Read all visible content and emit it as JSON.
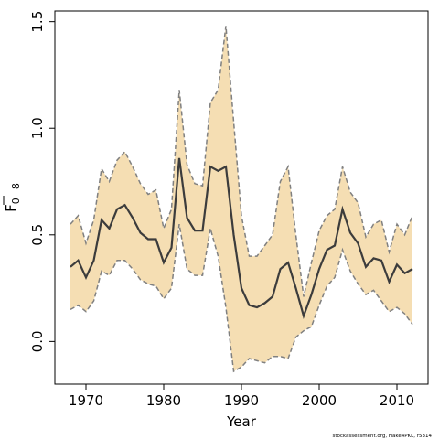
{
  "chart_data": {
    "type": "area",
    "xlabel": "Year",
    "ylabel_main": "F",
    "ylabel_sub": "0−8",
    "xlim": [
      1966,
      2014
    ],
    "ylim": [
      -0.2,
      1.55
    ],
    "x_ticks": [
      1970,
      1980,
      1990,
      2000,
      2010
    ],
    "y_ticks": [
      0.0,
      0.5,
      1.0,
      1.5
    ],
    "y_tick_labels": [
      "0.0",
      "0.5",
      "1.0",
      "1.5"
    ],
    "grid": false,
    "band_color": "#f5deb3",
    "line_color": "#3c3c3c",
    "bound_color": "#808080",
    "x": [
      1968,
      1969,
      1970,
      1971,
      1972,
      1973,
      1974,
      1975,
      1976,
      1977,
      1978,
      1979,
      1980,
      1981,
      1982,
      1983,
      1984,
      1985,
      1986,
      1987,
      1988,
      1989,
      1990,
      1991,
      1992,
      1993,
      1994,
      1995,
      1996,
      1997,
      1998,
      1999,
      2000,
      2001,
      2002,
      2003,
      2004,
      2005,
      2006,
      2007,
      2008,
      2009,
      2010,
      2011,
      2012
    ],
    "series": [
      {
        "role": "estimate",
        "values": [
          0.35,
          0.38,
          0.3,
          0.38,
          0.57,
          0.53,
          0.62,
          0.64,
          0.58,
          0.51,
          0.48,
          0.48,
          0.37,
          0.44,
          0.86,
          0.58,
          0.52,
          0.52,
          0.82,
          0.8,
          0.82,
          0.5,
          0.25,
          0.17,
          0.16,
          0.18,
          0.21,
          0.34,
          0.37,
          0.25,
          0.12,
          0.22,
          0.34,
          0.43,
          0.45,
          0.62,
          0.51,
          0.46,
          0.35,
          0.39,
          0.38,
          0.28,
          0.36,
          0.32,
          0.34
        ]
      },
      {
        "role": "upper",
        "values": [
          0.55,
          0.59,
          0.46,
          0.57,
          0.81,
          0.75,
          0.85,
          0.89,
          0.82,
          0.74,
          0.69,
          0.71,
          0.53,
          0.62,
          1.18,
          0.83,
          0.74,
          0.73,
          1.12,
          1.18,
          1.48,
          1.03,
          0.59,
          0.4,
          0.4,
          0.45,
          0.5,
          0.75,
          0.82,
          0.5,
          0.21,
          0.37,
          0.52,
          0.59,
          0.62,
          0.82,
          0.7,
          0.65,
          0.49,
          0.55,
          0.57,
          0.42,
          0.55,
          0.5,
          0.59
        ]
      },
      {
        "role": "lower",
        "values": [
          0.15,
          0.17,
          0.14,
          0.19,
          0.33,
          0.31,
          0.38,
          0.38,
          0.34,
          0.29,
          0.27,
          0.26,
          0.2,
          0.25,
          0.55,
          0.34,
          0.31,
          0.31,
          0.53,
          0.4,
          0.16,
          -0.14,
          -0.12,
          -0.08,
          -0.09,
          -0.1,
          -0.07,
          -0.07,
          -0.08,
          0.02,
          0.05,
          0.07,
          0.17,
          0.26,
          0.3,
          0.43,
          0.33,
          0.27,
          0.22,
          0.24,
          0.19,
          0.14,
          0.16,
          0.13,
          0.08
        ]
      }
    ]
  },
  "footer_text": "stockassessment.org, Hake4PKL, r5314"
}
